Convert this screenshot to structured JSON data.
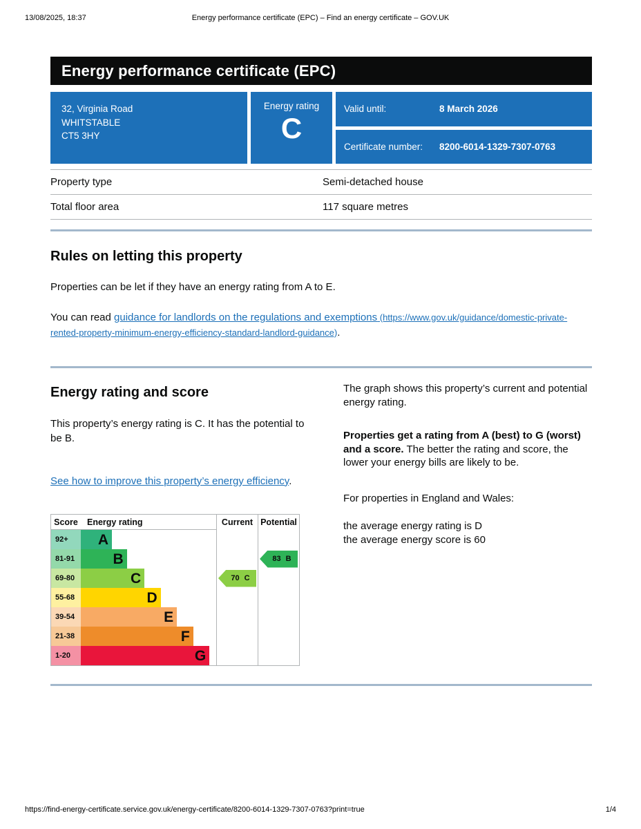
{
  "page": {
    "header": {
      "datetime": "13/08/2025, 18:37",
      "doc_title": "Energy performance certificate (EPC) – Find an energy certificate – GOV.UK"
    },
    "footer": {
      "url": "https://find-energy-certificate.service.gov.uk/energy-certificate/8200-6014-1329-7307-0763?print=true",
      "page_indicator": "1/4"
    }
  },
  "banner": {
    "title": "Energy performance certificate (EPC)"
  },
  "summary_box": {
    "background_color": "#1d70b8",
    "address_lines": [
      "32, Virginia Road",
      "WHITSTABLE",
      "CT5 3HY"
    ],
    "energy_rating_label": "Energy rating",
    "energy_rating_value": "C",
    "valid_until_label": "Valid until:",
    "valid_until_value": "8 March 2026",
    "certificate_number_label": "Certificate number:",
    "certificate_number_value": "8200-6014-1329-7307-0763"
  },
  "property_details": {
    "rows": [
      {
        "label": "Property type",
        "value": "Semi-detached house"
      },
      {
        "label": "Total floor area",
        "value": "117 square metres"
      }
    ]
  },
  "letting_rules": {
    "heading": "Rules on letting this property",
    "paragraph": "Properties can be let if they have an energy rating from A to E.",
    "read_prefix": "You can read ",
    "link_text": "guidance for landlords on the regulations and exemptions",
    "link_url_text": " (https://www.gov.uk/guidance/domestic-private-rented-property-minimum-energy-efficiency-standard-landlord-guidance)",
    "read_suffix": "."
  },
  "rating_section": {
    "heading": "Energy rating and score",
    "intro": "This property’s energy rating is C. It has the potential to be B.",
    "improve_link": "See how to improve this property’s energy efficiency",
    "improve_suffix": ".",
    "right_col": {
      "p1": "The graph shows this property’s current and potential energy rating.",
      "p2_bold": "Properties get a rating from A (best) to G (worst) and a score.",
      "p2_rest": " The better the rating and score, the lower your energy bills are likely to be.",
      "p3": "For properties in England and Wales:",
      "p4_line1": "the average energy rating is D",
      "p4_line2": "the average energy score is 60"
    }
  },
  "chart_data": {
    "type": "epc-rating-bands",
    "title": "Energy rating and score graph",
    "columns": [
      "Score",
      "Energy rating",
      "Current",
      "Potential"
    ],
    "border_color": "#b1b4b6",
    "bands": [
      {
        "score": "92+",
        "letter": "A",
        "color": "#2fb27b",
        "score_cell_color": "#92d8bc",
        "bar_pct": 23
      },
      {
        "score": "81-91",
        "letter": "B",
        "color": "#2eb357",
        "score_cell_color": "#94d9aa",
        "bar_pct": 34
      },
      {
        "score": "69-80",
        "letter": "C",
        "color": "#8cce45",
        "score_cell_color": "#c8e7a2",
        "bar_pct": 47
      },
      {
        "score": "55-68",
        "letter": "D",
        "color": "#ffd500",
        "score_cell_color": "#fef0a0",
        "bar_pct": 59
      },
      {
        "score": "39-54",
        "letter": "E",
        "color": "#f8aa64",
        "score_cell_color": "#fbd8b5",
        "bar_pct": 71
      },
      {
        "score": "21-38",
        "letter": "F",
        "color": "#ee8c2a",
        "score_cell_color": "#f7c997",
        "bar_pct": 83
      },
      {
        "score": "1-20",
        "letter": "G",
        "color": "#e9153b",
        "score_cell_color": "#f491a4",
        "bar_pct": 95
      }
    ],
    "current": {
      "score": "70",
      "letter": "C",
      "band_index": 2,
      "color": "#8cce45"
    },
    "potential": {
      "score": "83",
      "letter": "B",
      "band_index": 1,
      "color": "#2eb357"
    }
  }
}
